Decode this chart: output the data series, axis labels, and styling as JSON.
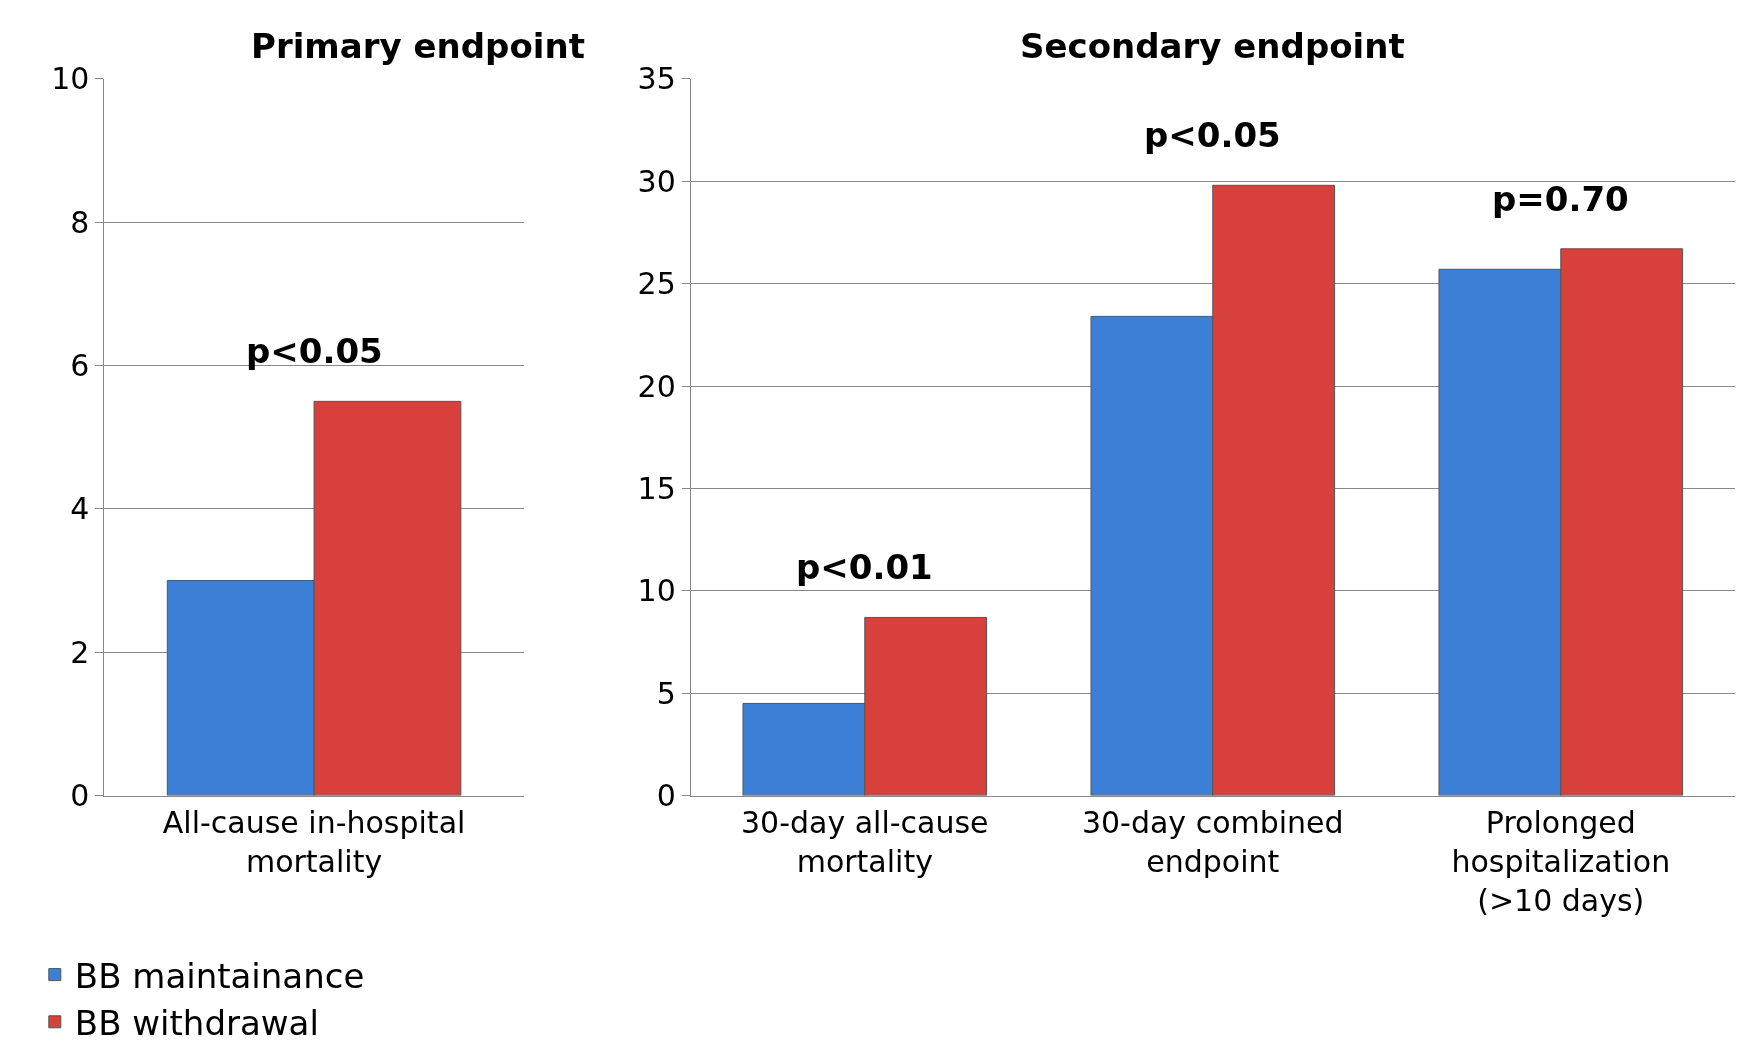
{
  "chart_data": [
    {
      "type": "bar",
      "title": "Primary endpoint",
      "categories": [
        "All-cause in-hospital mortality"
      ],
      "series": [
        {
          "name": "BB maintainance",
          "color": "#3b80d6",
          "values": [
            3.0
          ]
        },
        {
          "name": "BB withdrawal",
          "color": "#d8403c",
          "values": [
            5.5
          ]
        }
      ],
      "ylim": [
        0,
        10
      ],
      "yticks": [
        0,
        2,
        4,
        6,
        8,
        10
      ],
      "grid": "y",
      "legend": "bottom left",
      "annotations": [
        "p<0.05"
      ]
    },
    {
      "type": "bar",
      "title": "Secondary endpoint",
      "categories": [
        "30-day all-cause mortality",
        "30-day combined endpoint",
        "Prolonged hospitalization (>10 days)"
      ],
      "series": [
        {
          "color": "#3b80d6",
          "values": [
            4.5,
            23.4,
            25.7
          ]
        },
        {
          "color": "#d8403c",
          "values": [
            8.7,
            29.8,
            26.7
          ]
        }
      ],
      "ylim": [
        0,
        35
      ],
      "yticks": [
        0,
        5,
        10,
        15,
        20,
        25,
        30,
        35
      ],
      "grid": "y",
      "annotations": [
        "p<0.01",
        "p<0.05",
        "p=0.70"
      ]
    }
  ]
}
